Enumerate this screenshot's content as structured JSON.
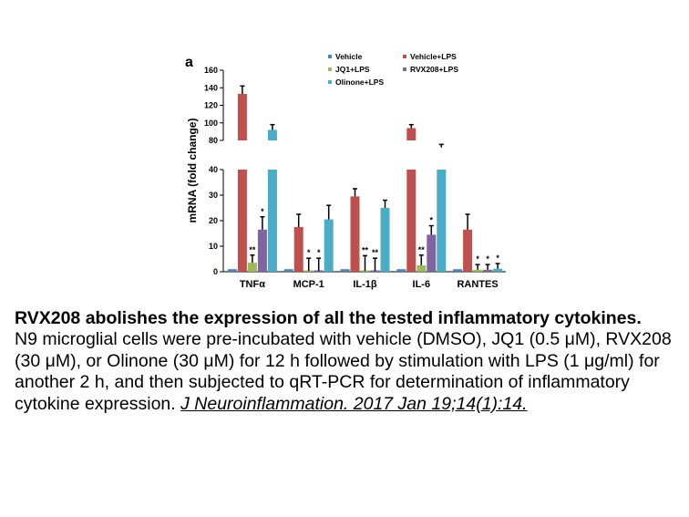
{
  "panel_label": "a",
  "caption": {
    "title": "RVX208 abolishes the expression of all the tested inflammatory cytokines.",
    "body": "N9 microglial cells were pre-incubated with vehicle (DMSO), JQ1 (0.5 μM), RVX208 (30 μM), or Olinone (30 μM) for 12 h followed by stimulation with LPS (1 μg/ml) for another 2 h, and then subjected to qRT-PCR for determination of inflammatory cytokine expression.",
    "citation": "J Neuroinflammation. 2017 Jan 19;14(1):14."
  },
  "colors": {
    "Vehicle": "#4f81bd",
    "Vehicle+LPS": "#c0504d",
    "JQ1+LPS": "#9bbb59",
    "RVX208+LPS": "#8064a2",
    "Olinone+LPS": "#4bacc6"
  },
  "chart_data": {
    "type": "bar",
    "ylabel": "mRNA (fold change)",
    "categories": [
      "TNFα",
      "MCP-1",
      "IL-1β",
      "IL-6",
      "RANTES"
    ],
    "axis_break": true,
    "lower_axis": {
      "ylim": [
        0,
        40
      ],
      "ticks": [
        "0",
        "10",
        "20",
        "30",
        "40"
      ]
    },
    "upper_axis": {
      "ylim": [
        80,
        160
      ],
      "ticks": [
        "80",
        "100",
        "120",
        "140",
        "160"
      ]
    },
    "legend_placement": "top-right",
    "series": [
      {
        "name": "Vehicle",
        "values": [
          1,
          1,
          1,
          1,
          1
        ],
        "errors": [
          0,
          0,
          0,
          0,
          0
        ],
        "significance": [
          "",
          "",
          "",
          "",
          ""
        ]
      },
      {
        "name": "Vehicle+LPS",
        "values": [
          133,
          17.5,
          29.5,
          94,
          16.5
        ],
        "errors": [
          9,
          5,
          3,
          4,
          6
        ],
        "significance": [
          "",
          "",
          "",
          "",
          ""
        ]
      },
      {
        "name": "JQ1+LPS",
        "values": [
          3.5,
          0.3,
          0.3,
          2.5,
          0.8
        ],
        "errors": [
          3,
          5,
          6,
          4,
          2
        ],
        "significance": [
          "**",
          "*",
          "**",
          "**",
          "*"
        ]
      },
      {
        "name": "RVX208+LPS",
        "values": [
          16.5,
          0.3,
          0.3,
          14.5,
          0.8
        ],
        "errors": [
          5,
          5,
          5,
          3.5,
          2
        ],
        "significance": [
          "*",
          "*",
          "**",
          "*",
          "*"
        ]
      },
      {
        "name": "Olinone+LPS",
        "values": [
          92,
          20.5,
          25,
          72,
          1.2
        ],
        "errors": [
          6,
          5.5,
          3,
          3.5,
          2
        ],
        "significance": [
          "",
          "",
          "",
          "",
          "*"
        ]
      }
    ]
  }
}
